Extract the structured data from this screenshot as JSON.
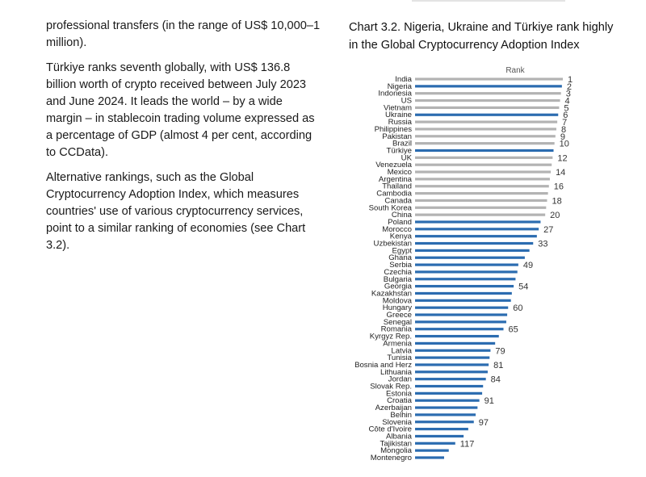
{
  "document": {
    "paragraphs": [
      "professional transfers (in the range of US$ 10,000–1 million).",
      "Türkiye ranks seventh globally, with US$ 136.8 billion worth of crypto received between July 2023 and June 2024. It leads the world – by a wide margin – in stablecoin trading volume expressed as a percentage of GDP (almost 4 per cent, according to CCData).",
      "Alternative rankings, such as the Global Cryptocurrency Adoption Index, which measures countries' use of various cryptocurrency services, point to a similar ranking of economies (see Chart 3.2)."
    ]
  },
  "chart_title": "Chart 3.2. Nigeria, Ukraine and Türkiye rank highly in the Global Cryptocurrency Adoption Index",
  "chart_data": {
    "type": "bar",
    "orientation": "horizontal",
    "header": "Rank",
    "categories": [
      "India",
      "Nigeria",
      "Indonesia",
      "US",
      "Vietnam",
      "Ukraine",
      "Russia",
      "Philippines",
      "Pakistan",
      "Brazil",
      "Türkiye",
      "UK",
      "Venezuela",
      "Mexico",
      "Argentina",
      "Thailand",
      "Cambodia",
      "Canada",
      "South Korea",
      "China",
      "Poland",
      "Morocco",
      "Kenya",
      "Uzbekistan",
      "Egypt",
      "Ghana",
      "Serbia",
      "Czechia",
      "Bulgaria",
      "Georgia",
      "Kazakhstan",
      "Moldova",
      "Hungary",
      "Greece",
      "Senegal",
      "Romania",
      "Kyrgyz Rep.",
      "Armenia",
      "Latvia",
      "Tunisia",
      "Bosnia and Herz",
      "Lithuania",
      "Jordan",
      "Slovak Rep.",
      "Estonia",
      "Croatia",
      "Azerbaijan",
      "Belhin",
      "Slovenia",
      "Côte d'Ivoire",
      "Albania",
      "Tajikistan",
      "Mongolia",
      "Montenegro"
    ],
    "values": [
      1,
      2,
      3,
      4,
      5,
      6,
      7,
      8,
      9,
      10,
      11,
      12,
      13,
      14,
      15,
      16,
      17,
      18,
      19,
      20,
      25,
      27,
      29,
      33,
      37,
      42,
      49,
      50,
      52,
      54,
      56,
      57,
      60,
      61,
      62,
      65,
      70,
      74,
      79,
      80,
      81,
      82,
      84,
      87,
      88,
      91,
      93,
      95,
      97,
      103,
      108,
      117,
      124,
      129
    ],
    "value_labels": [
      "1",
      "2",
      "3",
      "4",
      "5",
      "6",
      "7",
      "8",
      "9",
      "10",
      "",
      "12",
      "",
      "14",
      "",
      "16",
      "",
      "18",
      "",
      "20",
      "",
      "27",
      "",
      "33",
      "",
      "",
      "49",
      "",
      "",
      "54",
      "",
      "",
      "60",
      "",
      "",
      "65",
      "",
      "",
      "79",
      "",
      "81",
      "",
      "84",
      "",
      "",
      "91",
      "",
      "",
      "97",
      "",
      "",
      "117",
      "",
      ""
    ],
    "highlighted": [
      "Nigeria",
      "Ukraine",
      "Türkiye"
    ],
    "colors": {
      "grey": "#b3b3b3",
      "blue": "#2b6cb0"
    }
  }
}
